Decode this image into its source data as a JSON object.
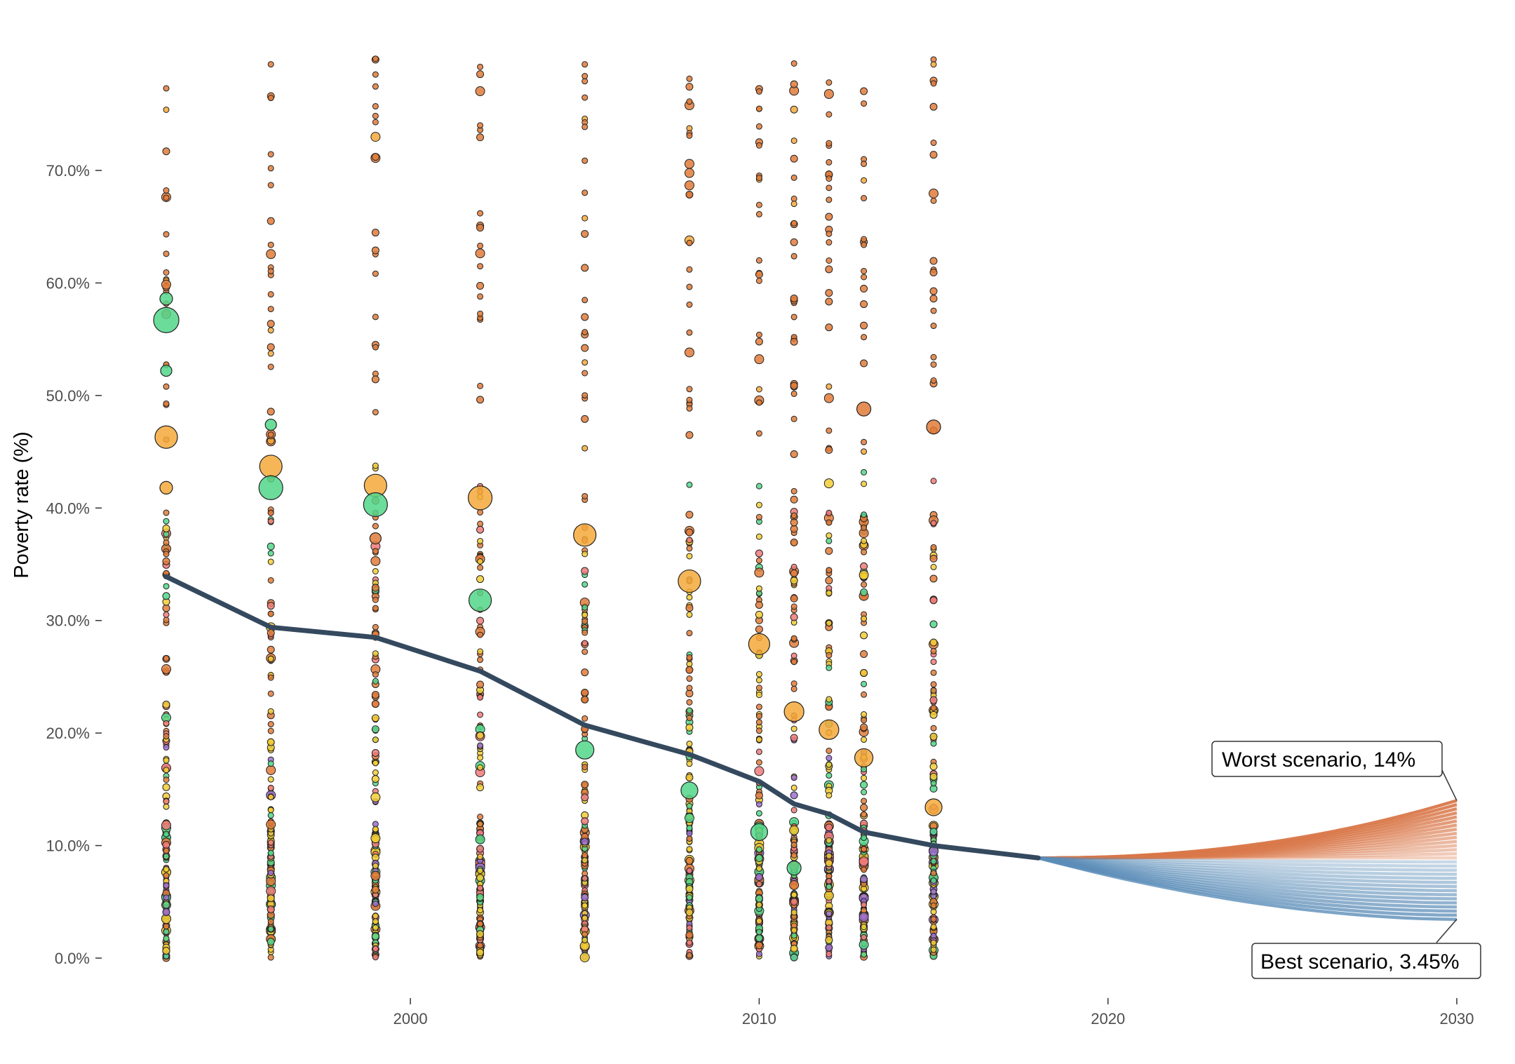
{
  "chart_data": {
    "type": "scatter",
    "title": "",
    "xlabel": "",
    "ylabel": "Poverty rate (%)",
    "xlim": [
      1992,
      2030
    ],
    "ylim": [
      0,
      80
    ],
    "y_ticks": [
      "0.0%",
      "10.0%",
      "20.0%",
      "30.0%",
      "40.0%",
      "50.0%",
      "60.0%",
      "70.0%"
    ],
    "x_ticks": [
      "2000",
      "2010",
      "2020",
      "2030"
    ],
    "grid": false,
    "legend": "none",
    "colors": {
      "trend": "#34495e",
      "region_points": [
        "#e07b39",
        "#f5a93b",
        "#52d68a",
        "#f2cc35",
        "#f07a7a",
        "#9b6fd1"
      ],
      "worst_scenarios": "#d9784a",
      "best_scenarios": "#5b8db8"
    },
    "series": [
      {
        "type": "line",
        "x": [
          1993,
          1996,
          1999,
          2002,
          2005,
          2008,
          2010,
          2011,
          2012,
          2013,
          2015,
          2018
        ],
        "values": [
          33.9,
          29.4,
          28.5,
          25.5,
          20.7,
          18.1,
          15.7,
          13.7,
          12.8,
          11.2,
          10.0,
          8.9
        ]
      },
      {
        "type": "scatter",
        "x": [
          1993,
          1993,
          1993,
          1993,
          1993,
          1996,
          1996,
          1996,
          1999,
          1999,
          1999,
          2002,
          2002,
          2005,
          2005,
          2008,
          2008,
          2010,
          2010,
          2011,
          2011,
          2012,
          2013,
          2013,
          2015,
          2015
        ],
        "values": [
          56.7,
          46.3,
          58.6,
          52.2,
          41.8,
          43.7,
          41.8,
          47.4,
          42.0,
          40.3,
          37.3,
          40.9,
          31.8,
          37.6,
          18.5,
          33.5,
          14.9,
          27.9,
          11.2,
          21.9,
          8.0,
          20.3,
          17.8,
          48.8,
          47.2,
          13.4
        ]
      },
      {
        "type": "scenario_range",
        "x": [
          2018,
          2030
        ],
        "start": 8.9,
        "end_worst": 14.0,
        "end_best": 3.45
      }
    ],
    "annotations": {
      "worst": "Worst scenario, 14%",
      "best": "Best scenario, 3.45%"
    }
  }
}
